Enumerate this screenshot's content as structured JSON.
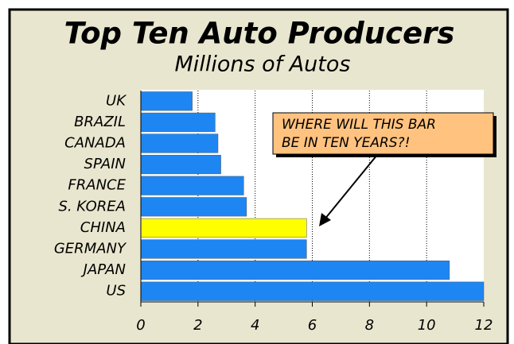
{
  "chart_data": {
    "type": "bar",
    "orientation": "horizontal",
    "title": "Top Ten Auto Producers",
    "subtitle": "Millions of Autos",
    "categories": [
      "UK",
      "BRAZIL",
      "CANADA",
      "SPAIN",
      "FRANCE",
      "S. KOREA",
      "CHINA",
      "GERMANY",
      "JAPAN",
      "US"
    ],
    "values": [
      1.8,
      2.6,
      2.7,
      2.8,
      3.6,
      3.7,
      5.8,
      5.8,
      10.8,
      12.0
    ],
    "colors": [
      "#1e86f2",
      "#1e86f2",
      "#1e86f2",
      "#1e86f2",
      "#1e86f2",
      "#1e86f2",
      "#ffff00",
      "#1e86f2",
      "#1e86f2",
      "#1e86f2"
    ],
    "xlim": [
      0,
      12
    ],
    "xticks": [
      0,
      2,
      4,
      6,
      8,
      10,
      12
    ],
    "grid": true,
    "annotation": [
      "WHERE WILL THIS BAR",
      "BE IN TEN YEARS?!"
    ]
  }
}
